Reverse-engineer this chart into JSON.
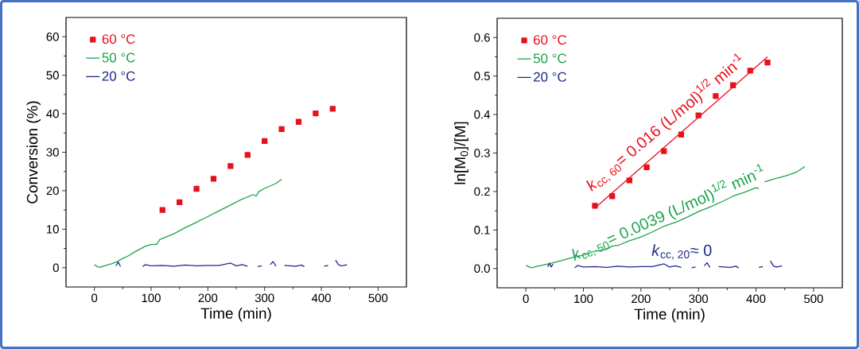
{
  "chart_data": [
    {
      "type": "scatter",
      "xlabel": "Time (min)",
      "ylabel": "Conversion (%)",
      "xlim": [
        -50,
        550
      ],
      "ylim": [
        -5,
        65
      ],
      "xticks": [
        0,
        100,
        200,
        300,
        400,
        500
      ],
      "yticks": [
        0,
        10,
        20,
        30,
        40,
        50,
        60
      ],
      "legend": "top left",
      "series": [
        {
          "name": "60 °C",
          "marker": "square",
          "color": "#e8101c",
          "x": [
            120,
            150,
            180,
            210,
            240,
            270,
            300,
            330,
            360,
            390,
            420
          ],
          "values": [
            15,
            17,
            20.5,
            23.1,
            26.4,
            29.3,
            32.9,
            36,
            37.9,
            40.1,
            41.3
          ]
        },
        {
          "name": "50 °C",
          "type": "line",
          "color": "#1aa34a",
          "x": [
            0,
            5,
            10,
            15,
            20,
            30,
            40,
            50,
            60,
            70,
            80,
            90,
            100,
            110,
            115,
            120,
            140,
            160,
            180,
            200,
            220,
            240,
            260,
            280,
            285,
            290,
            300,
            320,
            330
          ],
          "values": [
            0.8,
            0.3,
            0.1,
            0.4,
            0.6,
            1.0,
            1.6,
            2.4,
            3.1,
            4.0,
            4.8,
            5.6,
            6.0,
            6.1,
            7.3,
            7.6,
            8.8,
            10.4,
            11.8,
            13.3,
            14.8,
            16.3,
            17.8,
            19.0,
            18.6,
            19.8,
            20.6,
            21.9,
            23.0
          ]
        },
        {
          "name": "20 °C",
          "type": "line",
          "color": "#1f2a8a",
          "x": [
            38,
            42,
            46,
            50,
            85,
            90,
            100,
            120,
            140,
            160,
            180,
            200,
            220,
            240,
            250,
            260,
            270,
            275,
            288,
            295,
            305,
            310,
            315,
            320,
            325,
            335,
            345,
            355,
            365,
            370,
            375,
            405,
            412,
            418,
            425,
            430,
            435,
            440,
            445
          ],
          "values": [
            0.5,
            1.5,
            0.3,
            null,
            0.3,
            0.8,
            0.5,
            0.6,
            0.4,
            0.7,
            0.5,
            0.6,
            0.6,
            1.2,
            0.5,
            0.8,
            0.4,
            null,
            0.3,
            0.5,
            null,
            0.8,
            1.6,
            0.4,
            null,
            0.6,
            0.5,
            0.4,
            0.7,
            0.3,
            null,
            0.4,
            0.6,
            null,
            2.0,
            0.8,
            0.5,
            0.6,
            0.8
          ]
        }
      ]
    },
    {
      "type": "scatter",
      "xlabel": "Time (min)",
      "ylabel": "ln[M$_{0}$]/[M]",
      "xlim": [
        -50,
        550
      ],
      "ylim": [
        -0.05,
        0.65
      ],
      "xticks": [
        0,
        100,
        200,
        300,
        400,
        500
      ],
      "yticks": [
        {
          "value": 0,
          "label": "0.0"
        },
        0.1,
        0.2,
        0.3,
        0.4,
        0.5,
        0.6
      ],
      "legend": "top left",
      "series": [
        {
          "name": "60 °C",
          "marker": "square",
          "color": "#e8101c",
          "x": [
            120,
            150,
            180,
            210,
            240,
            270,
            300,
            330,
            360,
            390,
            420
          ],
          "values": [
            0.163,
            0.188,
            0.229,
            0.263,
            0.305,
            0.348,
            0.398,
            0.448,
            0.476,
            0.514,
            0.535
          ]
        },
        {
          "name": "50 °C",
          "type": "line",
          "color": "#1aa34a",
          "x": [
            0,
            10,
            20,
            40,
            60,
            80,
            100,
            120,
            140,
            150,
            160,
            180,
            200,
            220,
            240,
            260,
            280,
            300,
            320,
            340,
            360,
            380,
            400,
            405,
            408,
            415,
            430,
            450,
            470,
            485
          ],
          "values": [
            0.008,
            0.002,
            0.006,
            0.012,
            0.02,
            0.028,
            0.035,
            0.045,
            0.05,
            0.058,
            0.06,
            0.072,
            0.082,
            0.095,
            0.11,
            0.12,
            0.133,
            0.148,
            0.16,
            0.173,
            0.188,
            0.198,
            0.21,
            0.208,
            null,
            0.225,
            0.232,
            0.24,
            0.25,
            0.265
          ]
        },
        {
          "name": "20 °C",
          "type": "line",
          "color": "#1f2a8a",
          "x": [
            38,
            41,
            44,
            47,
            50,
            85,
            90,
            100,
            120,
            140,
            160,
            180,
            200,
            220,
            240,
            250,
            260,
            270,
            275,
            288,
            295,
            305,
            310,
            315,
            320,
            325,
            335,
            345,
            355,
            365,
            370,
            375,
            405,
            412,
            418,
            425,
            430,
            435,
            440,
            445
          ],
          "values": [
            0.004,
            0.014,
            0.004,
            0.012,
            null,
            0.002,
            0.008,
            0.004,
            0.005,
            0.003,
            0.006,
            0.004,
            0.005,
            0.005,
            0.012,
            0.004,
            0.007,
            0.003,
            null,
            0.002,
            0.004,
            null,
            0.007,
            0.015,
            0.003,
            null,
            0.005,
            0.004,
            0.003,
            0.006,
            0.002,
            null,
            0.003,
            0.005,
            null,
            0.02,
            0.007,
            0.004,
            0.005,
            0.007
          ]
        },
        {
          "type": "line",
          "color": "#e8101c",
          "x": [
            120,
            420
          ],
          "values": [
            0.157,
            0.55
          ]
        }
      ],
      "annotations": [
        "*k*$_{cc, 60}$= 0.016 (L/mol)$^{1/2}$ min$^{-1}$",
        "*k*$_{cc, 50}$= 0.0039 (L/mol)$^{1/2}$ min$^{-1}$",
        "*k*$_{cc, 20}$≈ 0"
      ]
    }
  ]
}
